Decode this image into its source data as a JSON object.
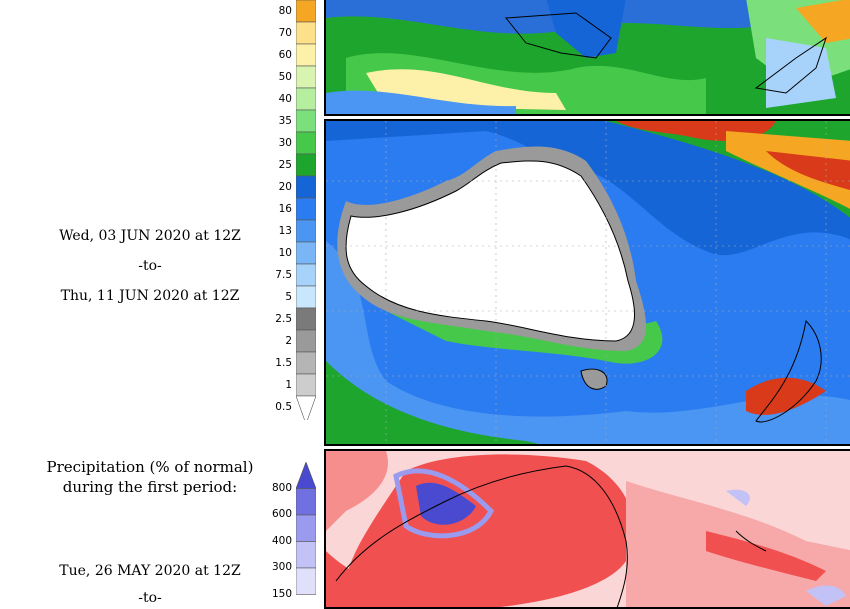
{
  "period2": {
    "start": "Wed, 03 JUN 2020 at 12Z",
    "to": "-to-",
    "end": "Thu, 11 JUN 2020 at 12Z"
  },
  "pct_section": {
    "title_line1": "Precipitation (% of normal)",
    "title_line2": "during the first period:",
    "start": "Tue, 26 MAY 2020 at 12Z",
    "to": "-to-"
  },
  "precip_scale": {
    "ticks": [
      "80",
      "70",
      "60",
      "50",
      "40",
      "35",
      "30",
      "25",
      "20",
      "16",
      "13",
      "10",
      "7.5",
      "5",
      "2.5",
      "2",
      "1.5",
      "1",
      "0.5"
    ],
    "colors": [
      "#f5a623",
      "#fde08a",
      "#fdf0a8",
      "#d8f4b0",
      "#b6eea0",
      "#7be07b",
      "#46c84a",
      "#1ea52d",
      "#1565d6",
      "#2b7cf0",
      "#4b95f3",
      "#7ab6f6",
      "#a7d2fa",
      "#c8e6fc",
      "#7a7a7a",
      "#9a9a9a",
      "#b5b5b5",
      "#cdcdcd",
      "#ffffff"
    ]
  },
  "pct_scale": {
    "ticks": [
      "800",
      "600",
      "400",
      "300",
      "150"
    ],
    "colors": [
      "#4a4ad0",
      "#7070e0",
      "#9a9aee",
      "#c2c2f6",
      "#e0e0fb"
    ]
  }
}
